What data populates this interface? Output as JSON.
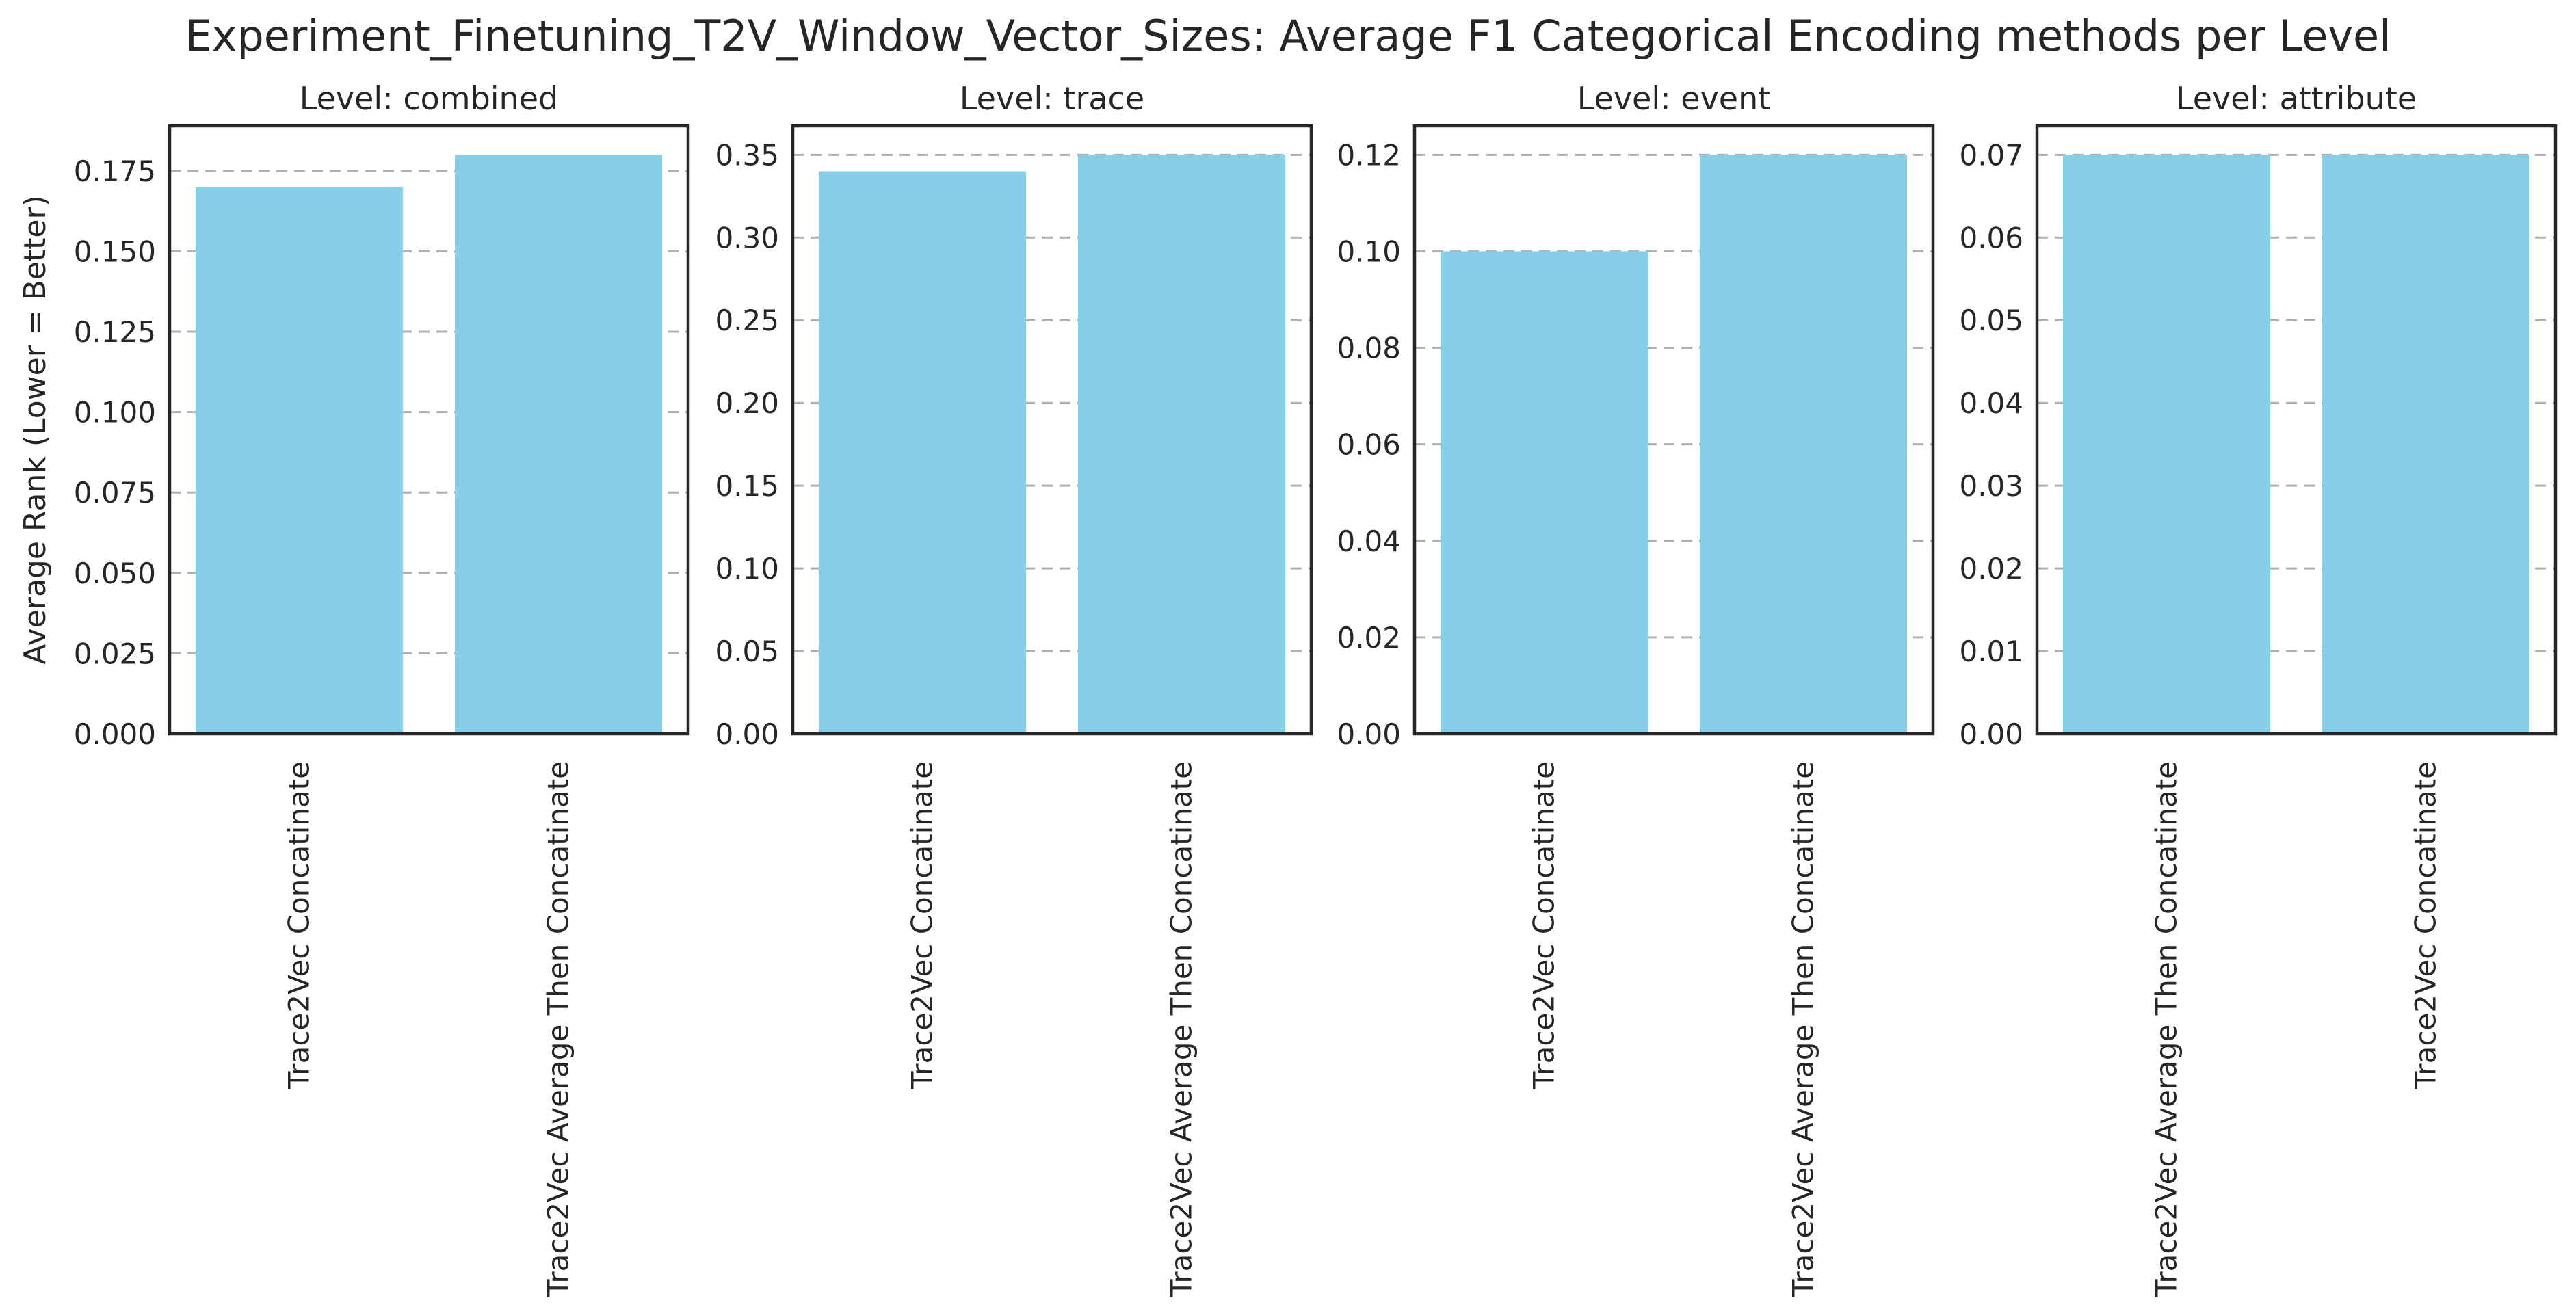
{
  "figure": {
    "suptitle": "Experiment_Finetuning_T2V_Window_Vector_Sizes: Average F1 Categorical Encoding methods per Level",
    "bar_color": "#87CEEB",
    "grid_color": "#b0b0b0",
    "frame_color": "#262626"
  },
  "chart_data": [
    {
      "type": "bar",
      "title": "Level: combined",
      "ylabel": "Average Rank (Lower = Better)",
      "categories": [
        "Trace2Vec Concatinate",
        "Trace2Vec Average Then Concatinate"
      ],
      "values": [
        0.17,
        0.18
      ],
      "ylim": [
        0,
        0.189
      ],
      "yticks": [
        0,
        0.025,
        0.05,
        0.075,
        0.1,
        0.125,
        0.15,
        0.175
      ],
      "ytick_labels": [
        "0.000",
        "0.025",
        "0.050",
        "0.075",
        "0.100",
        "0.125",
        "0.150",
        "0.175"
      ],
      "grid": "y dashed"
    },
    {
      "type": "bar",
      "title": "Level: trace",
      "ylabel": "",
      "categories": [
        "Trace2Vec Concatinate",
        "Trace2Vec Average Then Concatinate"
      ],
      "values": [
        0.34,
        0.35
      ],
      "ylim": [
        0,
        0.3675
      ],
      "yticks": [
        0,
        0.05,
        0.1,
        0.15,
        0.2,
        0.25,
        0.3,
        0.35
      ],
      "ytick_labels": [
        "0.00",
        "0.05",
        "0.10",
        "0.15",
        "0.20",
        "0.25",
        "0.30",
        "0.35"
      ],
      "grid": "y dashed"
    },
    {
      "type": "bar",
      "title": "Level: event",
      "ylabel": "",
      "categories": [
        "Trace2Vec Concatinate",
        "Trace2Vec Average Then Concatinate"
      ],
      "values": [
        0.1,
        0.12
      ],
      "ylim": [
        0,
        0.126
      ],
      "yticks": [
        0,
        0.02,
        0.04,
        0.06,
        0.08,
        0.1,
        0.12
      ],
      "ytick_labels": [
        "0.00",
        "0.02",
        "0.04",
        "0.06",
        "0.08",
        "0.10",
        "0.12"
      ],
      "grid": "y dashed"
    },
    {
      "type": "bar",
      "title": "Level: attribute",
      "ylabel": "",
      "categories": [
        "Trace2Vec Average Then Concatinate",
        "Trace2Vec Concatinate"
      ],
      "values": [
        0.07,
        0.07
      ],
      "ylim": [
        0,
        0.0735
      ],
      "yticks": [
        0,
        0.01,
        0.02,
        0.03,
        0.04,
        0.05,
        0.06,
        0.07
      ],
      "ytick_labels": [
        "0.00",
        "0.01",
        "0.02",
        "0.03",
        "0.04",
        "0.05",
        "0.06",
        "0.07"
      ],
      "grid": "y dashed"
    }
  ]
}
